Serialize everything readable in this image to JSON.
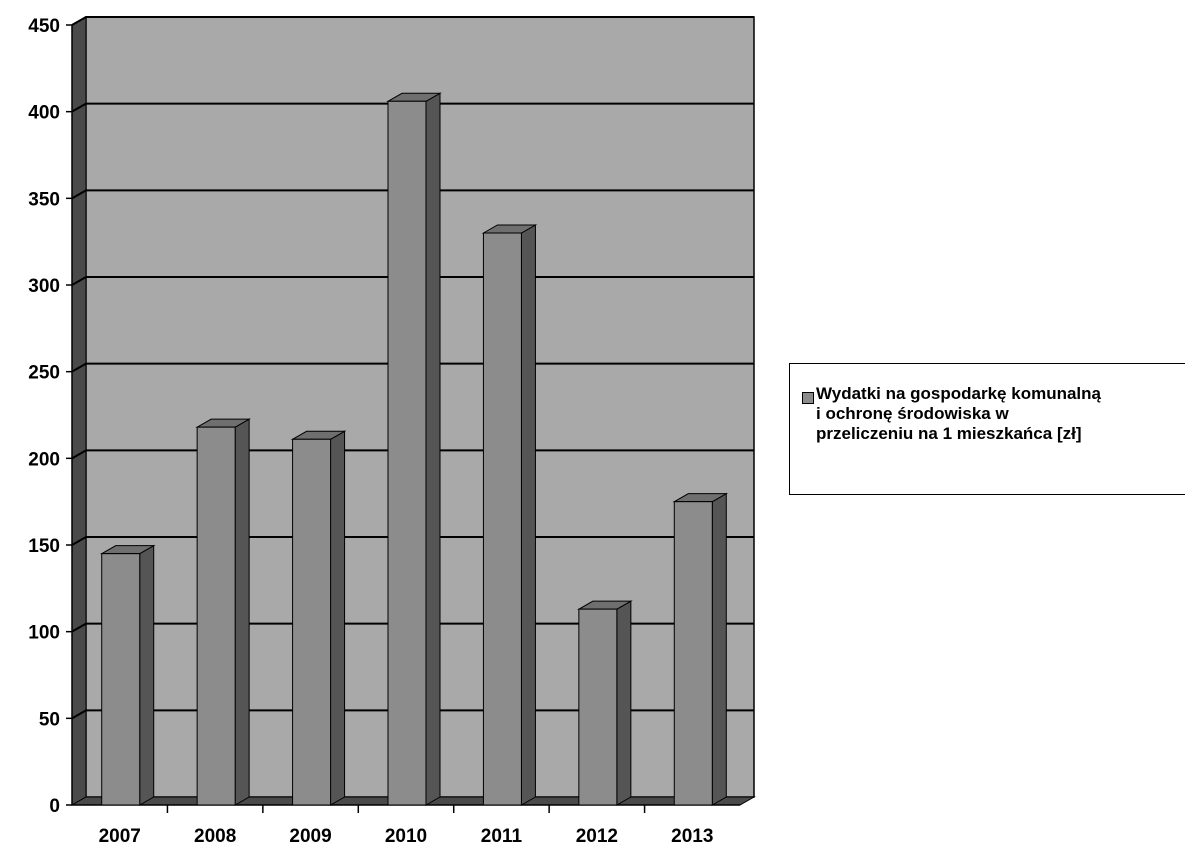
{
  "colors": {
    "wall": "#a9a9a9",
    "bar_front": "#8c8c8c",
    "bar_side": "#555555",
    "bar_top": "#6f6f6f",
    "gridline": "#000000",
    "axis": "#000000"
  },
  "chart_data": {
    "type": "bar",
    "title": "",
    "xlabel": "",
    "ylabel": "",
    "categories": [
      "2007",
      "2008",
      "2009",
      "2010",
      "2011",
      "2012",
      "2013"
    ],
    "series": [
      {
        "name": "Wydatki na gospodarkę komunalną\ni ochronę środowiska w\nprzeliczeniu na 1 mieszkańca [zł]",
        "values": [
          145,
          218,
          211,
          406,
          330,
          113,
          175
        ]
      }
    ],
    "ylim": [
      0,
      450
    ],
    "yticks": [
      "0",
      "50",
      "100",
      "150",
      "200",
      "250",
      "300",
      "350",
      "400",
      "450"
    ],
    "grid": true,
    "legend_position": "right",
    "style": "3d-column"
  }
}
